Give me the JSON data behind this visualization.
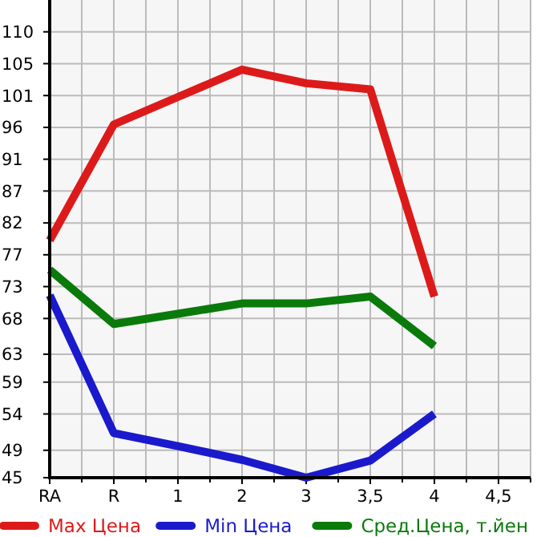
{
  "chart_data": {
    "type": "line",
    "categories": [
      "RA",
      "R",
      "1",
      "2",
      "3",
      "3,5",
      "4",
      "4,5"
    ],
    "series": [
      {
        "name": "Max Цена",
        "color": "#dd1a1a",
        "values": [
          79.6,
          96.5,
          100.5,
          104.5,
          102.5,
          101.6,
          71.4,
          null
        ]
      },
      {
        "name": "Min Цена",
        "color": "#1a1acc",
        "values": [
          71.6,
          51.5,
          49.6,
          47.6,
          45,
          47.5,
          54.3,
          null
        ]
      },
      {
        "name": "Сред.Цена, т.йен",
        "color": "#0a7a0a",
        "values": [
          75.3,
          67.4,
          68.9,
          70.4,
          70.4,
          71.4,
          64.2,
          null
        ]
      }
    ],
    "ylim": [
      45,
      114.64
    ],
    "yticks": [
      45,
      49,
      {
        "value": 54.29,
        "label": "54"
      },
      {
        "value": 58.93,
        "label": "59"
      },
      63,
      {
        "value": 68.21,
        "label": "68"
      },
      {
        "value": 72.86,
        "label": "73"
      },
      {
        "value": 77.5,
        "label": "77"
      },
      {
        "value": 82.14,
        "label": "82"
      },
      {
        "value": 86.79,
        "label": "87"
      },
      {
        "value": 91.43,
        "label": "91"
      },
      {
        "value": 96.07,
        "label": "96"
      },
      {
        "value": 100.71,
        "label": "101"
      },
      {
        "value": 105.36,
        "label": "105"
      },
      110
    ],
    "grid": true,
    "legend": "bottom",
    "marker": "none",
    "line_style": "solid"
  }
}
